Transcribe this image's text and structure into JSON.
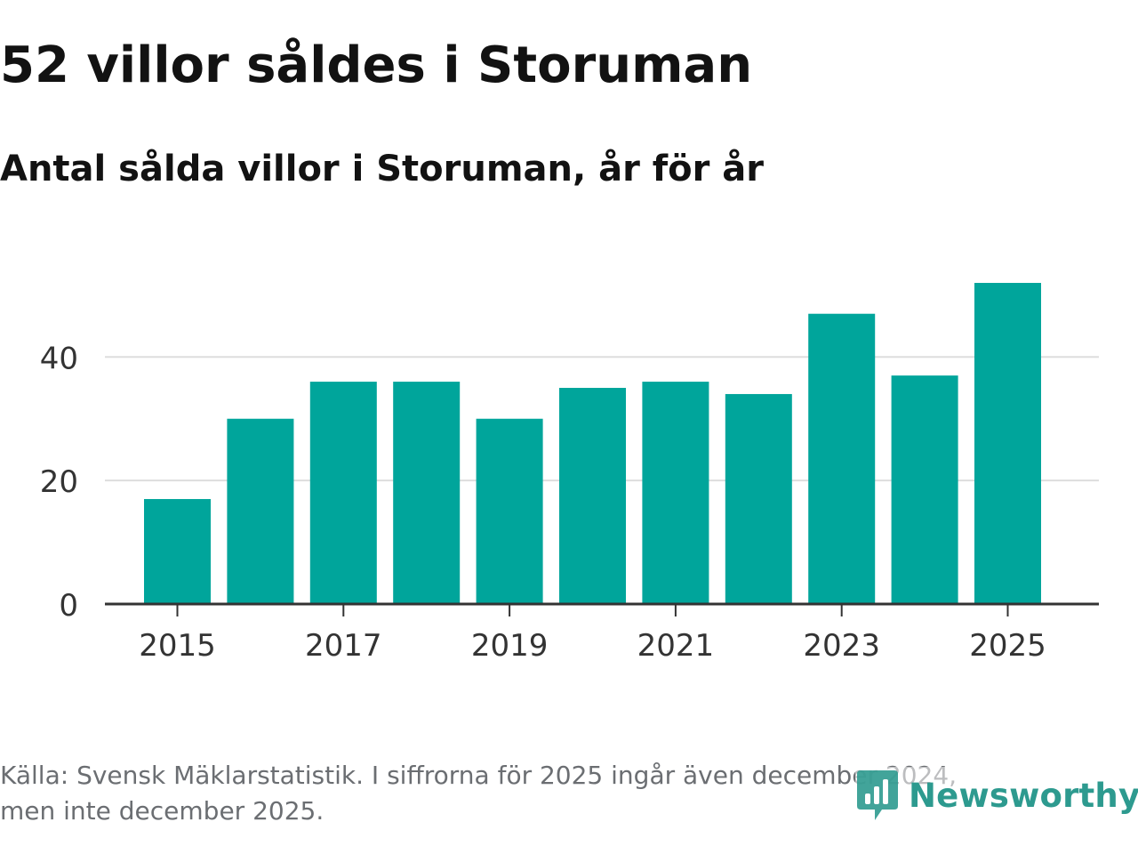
{
  "title": "52 villor såldes i Storuman",
  "subtitle": "Antal sålda villor i Storuman, år för år",
  "footnote": {
    "line1": "Källa: Svensk Mäklarstatistik. I siffrorna för 2025 ingår även december 2024,",
    "line2": "men inte december 2025."
  },
  "brand": {
    "name": "Newsworthy",
    "logo_icon": "newsworthy-logo-icon"
  },
  "colors": {
    "bar": "#00a59b",
    "grid": "#dddddd",
    "axis": "#333333",
    "tick_text": "#333333",
    "brand": "#2d9a8f"
  },
  "chart_data": {
    "type": "bar",
    "title": "52 villor såldes i Storuman",
    "subtitle": "Antal sålda villor i Storuman, år för år",
    "categories": [
      "2015",
      "2016",
      "2017",
      "2018",
      "2019",
      "2020",
      "2021",
      "2022",
      "2023",
      "2024",
      "2025"
    ],
    "values": [
      17,
      30,
      36,
      36,
      30,
      35,
      36,
      34,
      47,
      37,
      52
    ],
    "x_tick_labels": [
      "2015",
      "2017",
      "2019",
      "2021",
      "2023",
      "2025"
    ],
    "y_ticks": [
      0,
      20,
      40
    ],
    "y_tick_labels": [
      "0",
      "20",
      "40"
    ],
    "ylim": [
      0,
      52
    ],
    "xlabel": "",
    "ylabel": "",
    "grid": true,
    "legend": "none"
  }
}
